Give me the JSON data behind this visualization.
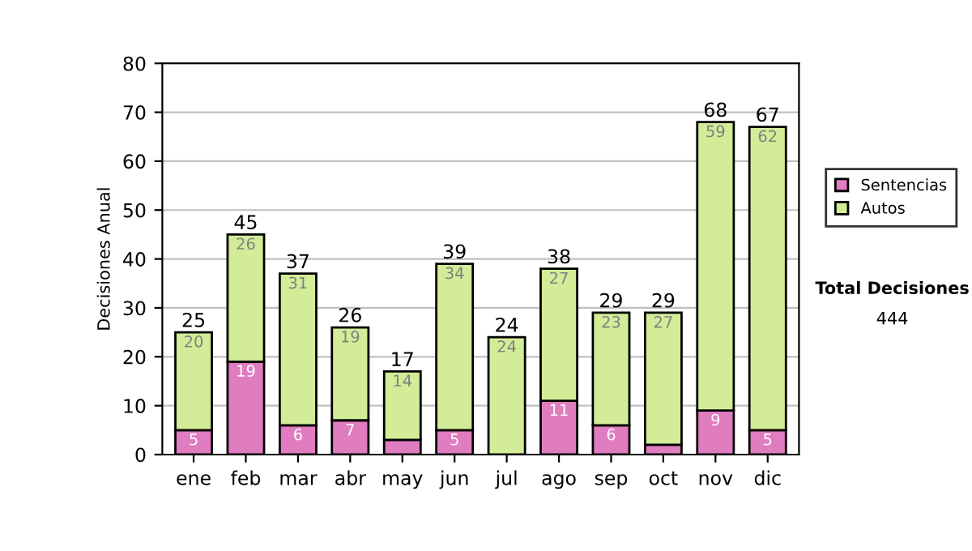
{
  "chart_data": {
    "type": "bar",
    "stacked": true,
    "ylabel": "Decisiones Anual",
    "categories": [
      "ene",
      "feb",
      "mar",
      "abr",
      "may",
      "jun",
      "jul",
      "ago",
      "sep",
      "oct",
      "nov",
      "dic"
    ],
    "series": [
      {
        "name": "Sentencias",
        "color": "#e07cc0",
        "values": [
          5,
          19,
          6,
          7,
          3,
          5,
          0,
          11,
          6,
          2,
          9,
          5
        ],
        "value_labels": [
          "5",
          "19",
          "6",
          "7",
          null,
          "5",
          null,
          "11",
          "6",
          null,
          "9",
          "5"
        ]
      },
      {
        "name": "Autos",
        "color": "#d2ec98",
        "values": [
          20,
          26,
          31,
          19,
          14,
          34,
          24,
          27,
          23,
          27,
          59,
          62
        ],
        "value_labels": [
          "20",
          "26",
          "31",
          "19",
          "14",
          "34",
          "24",
          "27",
          "23",
          "27",
          "59",
          "62"
        ]
      }
    ],
    "totals": [
      "25",
      "45",
      "37",
      "26",
      "17",
      "39",
      "24",
      "38",
      "29",
      "29",
      "68",
      "67"
    ],
    "ylim": [
      0,
      80
    ],
    "yticks": [
      0,
      10,
      20,
      30,
      40,
      50,
      60,
      70,
      80
    ],
    "grid": "y",
    "legend": "right",
    "annotations": [
      "Total Decisiones",
      "444"
    ]
  }
}
